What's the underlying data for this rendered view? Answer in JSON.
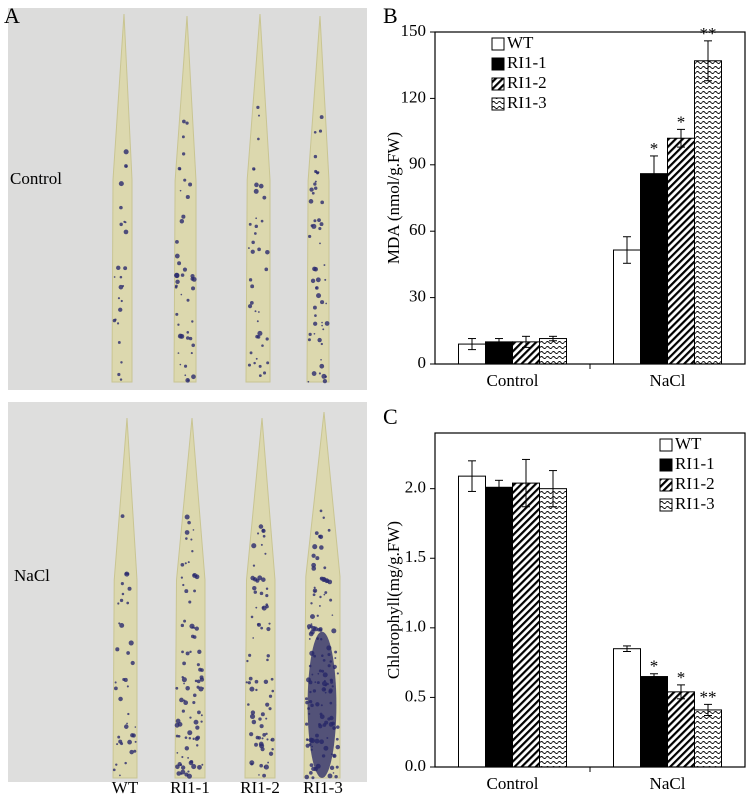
{
  "panel_a": {
    "label": "A",
    "rows": [
      "Control",
      "NaCl"
    ],
    "columns": [
      "WT",
      "RI1-1",
      "RI1-2",
      "RI1-3"
    ]
  },
  "chart_data": [
    {
      "type": "bar",
      "label": "B",
      "ylabel": "MDA (nmol/g.FW)",
      "categories": [
        "Control",
        "NaCl"
      ],
      "ylim": [
        0,
        150
      ],
      "yticks": [
        0,
        30,
        60,
        90,
        120,
        150
      ],
      "legend_position": "upper left",
      "series": [
        {
          "name": "WT",
          "color": "#ffffff",
          "pattern": "solid",
          "values": [
            9,
            51.5
          ],
          "errors": [
            2.5,
            6
          ],
          "significance": [
            null,
            null
          ]
        },
        {
          "name": "RI1-1",
          "color": "#000000",
          "pattern": "solid",
          "values": [
            10,
            86
          ],
          "errors": [
            1.5,
            8
          ],
          "significance": [
            null,
            "*"
          ]
        },
        {
          "name": "RI1-2",
          "color": "#000000",
          "pattern": "hatch",
          "values": [
            10,
            102
          ],
          "errors": [
            2.5,
            4
          ],
          "significance": [
            null,
            "*"
          ]
        },
        {
          "name": "RI1-3",
          "color": "#000000",
          "pattern": "dots",
          "values": [
            11.5,
            137
          ],
          "errors": [
            1,
            9
          ],
          "significance": [
            null,
            "**"
          ]
        }
      ]
    },
    {
      "type": "bar",
      "label": "C",
      "ylabel": "Chlorophyll(mg/g.FW)",
      "categories": [
        "Control",
        "NaCl"
      ],
      "ylim": [
        0,
        2.4
      ],
      "yticks": [
        {
          "value": 0,
          "label": "0.0"
        },
        0.5,
        {
          "value": 1,
          "label": "1.0"
        },
        1.5,
        {
          "value": 2,
          "label": "2.0"
        }
      ],
      "legend_position": "upper right",
      "series": [
        {
          "name": "WT",
          "color": "#ffffff",
          "pattern": "solid",
          "values": [
            2.09,
            0.85
          ],
          "errors": [
            0.11,
            0.02
          ],
          "significance": [
            null,
            null
          ]
        },
        {
          "name": "RI1-1",
          "color": "#000000",
          "pattern": "solid",
          "values": [
            2.01,
            0.65
          ],
          "errors": [
            0.05,
            0.02
          ],
          "significance": [
            null,
            "*"
          ]
        },
        {
          "name": "RI1-2",
          "color": "#000000",
          "pattern": "hatch",
          "values": [
            2.04,
            0.54
          ],
          "errors": [
            0.17,
            0.05
          ],
          "significance": [
            null,
            "*"
          ]
        },
        {
          "name": "RI1-3",
          "color": "#000000",
          "pattern": "dots",
          "values": [
            2.0,
            0.41
          ],
          "errors": [
            0.13,
            0.04
          ],
          "significance": [
            null,
            "**"
          ]
        }
      ]
    }
  ]
}
